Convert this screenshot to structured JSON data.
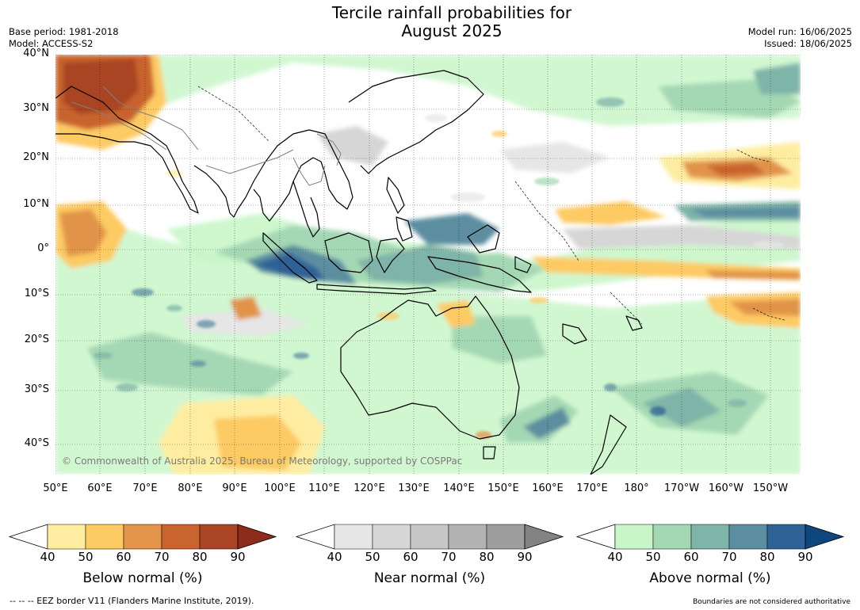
{
  "title": "Tercile rainfall probabilities for\nAugust 2025",
  "base_period": "Base period: 1981-2018",
  "model": "Model: ACCESS-S2",
  "model_run": "Model run: 16/06/2025",
  "issued": "Issued: 18/06/2025",
  "lat_labels": [
    "40°N",
    "30°N",
    "20°N",
    "10°N",
    "0°",
    "10°S",
    "20°S",
    "30°S",
    "40°S"
  ],
  "lon_labels": [
    "50°E",
    "60°E",
    "70°E",
    "80°E",
    "90°E",
    "100°E",
    "110°E",
    "120°E",
    "130°E",
    "140°E",
    "150°E",
    "160°E",
    "170°E",
    "180°",
    "170°W",
    "160°W",
    "150°W"
  ],
  "copyright": "© Commonwealth of Australia 2025, Bureau of Meteorology, supported by COSPPac",
  "colorbars": [
    {
      "label": "Below normal (%)",
      "ticks": [
        "40",
        "50",
        "60",
        "70",
        "80",
        "90"
      ],
      "colors": [
        "#ffffff",
        "#feeda0",
        "#fdca63",
        "#e1944a",
        "#c9632f",
        "#a94424",
        "#8c2d1b"
      ]
    },
    {
      "label": "Near normal (%)",
      "ticks": [
        "40",
        "50",
        "60",
        "70",
        "80",
        "90"
      ],
      "colors": [
        "#ffffff",
        "#e6e6e6",
        "#d6d6d6",
        "#c6c6c6",
        "#b3b3b3",
        "#9e9e9e",
        "#838383"
      ]
    },
    {
      "label": "Above normal (%)",
      "ticks": [
        "40",
        "50",
        "60",
        "70",
        "80",
        "90"
      ],
      "colors": [
        "#ffffff",
        "#c9f6c9",
        "#a4d8b4",
        "#7fb4a8",
        "#5b8ea0",
        "#2f6296",
        "#0e467d"
      ]
    }
  ],
  "footer_left": "--  --  -- EEZ border V11 (Flanders Marine Institute, 2019).",
  "footer_right": "Boundaries are not considered authoritative",
  "icons": [
    "colorbar-arrow-left",
    "colorbar-arrow-right"
  ]
}
